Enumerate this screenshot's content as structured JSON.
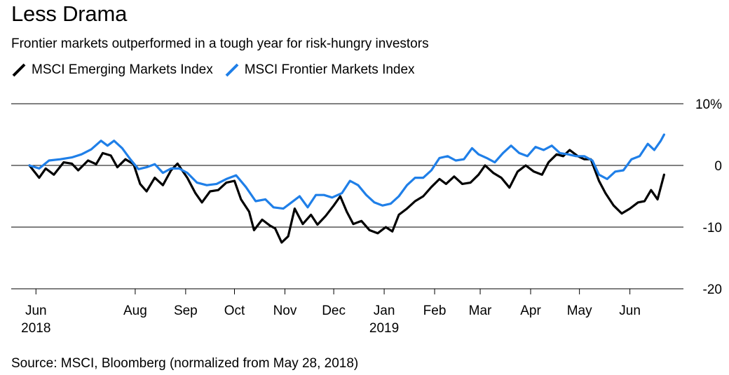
{
  "title": "Less Drama",
  "subtitle": "Frontier markets outperformed in a tough year for risk-hungry investors",
  "source": "Source: MSCI, Bloomberg (normalized from May 28, 2018)",
  "colors": {
    "em": "#000000",
    "fm": "#1f7fe8"
  },
  "chart_data": {
    "type": "line",
    "title": "Less Drama",
    "subtitle": "Frontier markets outperformed in a tough year for risk-hungry investors",
    "xlabel": "",
    "ylabel": "",
    "ylim": [
      -20,
      10
    ],
    "yticks": [
      10,
      0,
      -10,
      -20
    ],
    "ytick_labels": [
      "10%",
      "0",
      "-10",
      "-20"
    ],
    "grid": true,
    "legend": "top-left",
    "x_start": "2018-05-28",
    "x_end": "2019-06-24",
    "x_ticks": [
      {
        "date": "2018-06-01",
        "label": "Jun",
        "year": "2018"
      },
      {
        "date": "2018-08-01",
        "label": "Aug",
        "year": ""
      },
      {
        "date": "2018-09-01",
        "label": "Sep",
        "year": ""
      },
      {
        "date": "2018-10-01",
        "label": "Oct",
        "year": ""
      },
      {
        "date": "2018-11-01",
        "label": "Nov",
        "year": ""
      },
      {
        "date": "2018-12-01",
        "label": "Dec",
        "year": ""
      },
      {
        "date": "2019-01-01",
        "label": "Jan",
        "year": "2019"
      },
      {
        "date": "2019-02-01",
        "label": "Feb",
        "year": ""
      },
      {
        "date": "2019-03-01",
        "label": "Mar",
        "year": ""
      },
      {
        "date": "2019-04-01",
        "label": "Apr",
        "year": ""
      },
      {
        "date": "2019-05-01",
        "label": "May",
        "year": ""
      },
      {
        "date": "2019-06-01",
        "label": "Jun",
        "year": ""
      }
    ],
    "series": [
      {
        "name": "MSCI Emerging Markets Index",
        "color": "#000000",
        "points": [
          [
            "2018-05-28",
            0
          ],
          [
            "2018-06-03",
            -2
          ],
          [
            "2018-06-07",
            -0.5
          ],
          [
            "2018-06-12",
            -1.5
          ],
          [
            "2018-06-18",
            0.5
          ],
          [
            "2018-06-23",
            0.3
          ],
          [
            "2018-06-27",
            -0.8
          ],
          [
            "2018-07-03",
            0.8
          ],
          [
            "2018-07-08",
            0.2
          ],
          [
            "2018-07-12",
            2.0
          ],
          [
            "2018-07-17",
            1.6
          ],
          [
            "2018-07-21",
            -0.3
          ],
          [
            "2018-07-26",
            1.0
          ],
          [
            "2018-07-31",
            0.2
          ],
          [
            "2018-08-04",
            -3.0
          ],
          [
            "2018-08-08",
            -4.2
          ],
          [
            "2018-08-13",
            -2.0
          ],
          [
            "2018-08-18",
            -3.2
          ],
          [
            "2018-08-23",
            -0.8
          ],
          [
            "2018-08-27",
            0.3
          ],
          [
            "2018-09-02",
            -2.0
          ],
          [
            "2018-09-07",
            -4.5
          ],
          [
            "2018-09-11",
            -6.0
          ],
          [
            "2018-09-16",
            -4.2
          ],
          [
            "2018-09-21",
            -4.0
          ],
          [
            "2018-09-26",
            -2.8
          ],
          [
            "2018-10-01",
            -2.5
          ],
          [
            "2018-10-05",
            -5.5
          ],
          [
            "2018-10-10",
            -7.5
          ],
          [
            "2018-10-13",
            -10.5
          ],
          [
            "2018-10-18",
            -8.8
          ],
          [
            "2018-10-23",
            -9.8
          ],
          [
            "2018-10-26",
            -10.2
          ],
          [
            "2018-10-30",
            -12.5
          ],
          [
            "2018-11-03",
            -11.5
          ],
          [
            "2018-11-07",
            -7.0
          ],
          [
            "2018-11-12",
            -9.5
          ],
          [
            "2018-11-17",
            -8.0
          ],
          [
            "2018-11-21",
            -9.6
          ],
          [
            "2018-11-26",
            -8.2
          ],
          [
            "2018-12-01",
            -6.5
          ],
          [
            "2018-12-05",
            -5.0
          ],
          [
            "2018-12-09",
            -7.5
          ],
          [
            "2018-12-13",
            -9.5
          ],
          [
            "2018-12-18",
            -9.0
          ],
          [
            "2018-12-23",
            -10.5
          ],
          [
            "2018-12-28",
            -11.0
          ],
          [
            "2019-01-02",
            -10.0
          ],
          [
            "2019-01-06",
            -10.7
          ],
          [
            "2019-01-10",
            -8.0
          ],
          [
            "2019-01-15",
            -7.0
          ],
          [
            "2019-01-20",
            -5.8
          ],
          [
            "2019-01-25",
            -5.0
          ],
          [
            "2019-01-30",
            -3.5
          ],
          [
            "2019-02-04",
            -2.2
          ],
          [
            "2019-02-08",
            -3.0
          ],
          [
            "2019-02-13",
            -1.8
          ],
          [
            "2019-02-18",
            -3.0
          ],
          [
            "2019-02-23",
            -2.8
          ],
          [
            "2019-02-28",
            -1.5
          ],
          [
            "2019-03-04",
            0
          ],
          [
            "2019-03-09",
            -1.2
          ],
          [
            "2019-03-14",
            -2.0
          ],
          [
            "2019-03-19",
            -3.6
          ],
          [
            "2019-03-24",
            -1.0
          ],
          [
            "2019-03-29",
            0
          ],
          [
            "2019-04-03",
            -1.0
          ],
          [
            "2019-04-08",
            -1.5
          ],
          [
            "2019-04-12",
            0.5
          ],
          [
            "2019-04-17",
            1.8
          ],
          [
            "2019-04-21",
            1.5
          ],
          [
            "2019-04-25",
            2.5
          ],
          [
            "2019-04-30",
            1.5
          ],
          [
            "2019-05-04",
            1.0
          ],
          [
            "2019-05-08",
            1.0
          ],
          [
            "2019-05-13",
            -2.5
          ],
          [
            "2019-05-17",
            -4.5
          ],
          [
            "2019-05-22",
            -6.5
          ],
          [
            "2019-05-27",
            -7.8
          ],
          [
            "2019-06-01",
            -7.0
          ],
          [
            "2019-06-06",
            -6.0
          ],
          [
            "2019-06-10",
            -5.8
          ],
          [
            "2019-06-14",
            -4.0
          ],
          [
            "2019-06-18",
            -5.5
          ],
          [
            "2019-06-22",
            -1.5
          ]
        ]
      },
      {
        "name": "MSCI Frontier Markets Index",
        "color": "#1f7fe8",
        "points": [
          [
            "2018-05-28",
            0
          ],
          [
            "2018-06-03",
            -0.5
          ],
          [
            "2018-06-09",
            0.8
          ],
          [
            "2018-06-16",
            1.0
          ],
          [
            "2018-06-23",
            1.3
          ],
          [
            "2018-06-29",
            1.8
          ],
          [
            "2018-07-05",
            2.6
          ],
          [
            "2018-07-11",
            4.0
          ],
          [
            "2018-07-15",
            3.2
          ],
          [
            "2018-07-19",
            4.0
          ],
          [
            "2018-07-24",
            2.8
          ],
          [
            "2018-07-29",
            1.0
          ],
          [
            "2018-08-03",
            -0.6
          ],
          [
            "2018-08-08",
            -0.3
          ],
          [
            "2018-08-13",
            0.2
          ],
          [
            "2018-08-18",
            -1.2
          ],
          [
            "2018-08-23",
            -0.5
          ],
          [
            "2018-08-28",
            -0.5
          ],
          [
            "2018-09-02",
            -1.2
          ],
          [
            "2018-09-08",
            -2.8
          ],
          [
            "2018-09-14",
            -3.2
          ],
          [
            "2018-09-20",
            -3.0
          ],
          [
            "2018-09-26",
            -2.2
          ],
          [
            "2018-10-02",
            -1.6
          ],
          [
            "2018-10-08",
            -3.5
          ],
          [
            "2018-10-14",
            -5.8
          ],
          [
            "2018-10-20",
            -5.5
          ],
          [
            "2018-10-25",
            -6.8
          ],
          [
            "2018-10-31",
            -7.0
          ],
          [
            "2018-11-05",
            -6.0
          ],
          [
            "2018-11-10",
            -5.0
          ],
          [
            "2018-11-15",
            -6.8
          ],
          [
            "2018-11-20",
            -4.8
          ],
          [
            "2018-11-25",
            -4.8
          ],
          [
            "2018-11-30",
            -5.2
          ],
          [
            "2018-12-06",
            -4.5
          ],
          [
            "2018-12-11",
            -2.5
          ],
          [
            "2018-12-16",
            -3.2
          ],
          [
            "2018-12-21",
            -4.8
          ],
          [
            "2018-12-26",
            -6.0
          ],
          [
            "2018-12-31",
            -6.5
          ],
          [
            "2019-01-05",
            -6.2
          ],
          [
            "2019-01-10",
            -5.0
          ],
          [
            "2019-01-15",
            -3.2
          ],
          [
            "2019-01-20",
            -2.0
          ],
          [
            "2019-01-25",
            -2.0
          ],
          [
            "2019-01-30",
            -0.8
          ],
          [
            "2019-02-04",
            1.2
          ],
          [
            "2019-02-09",
            1.5
          ],
          [
            "2019-02-14",
            0.8
          ],
          [
            "2019-02-19",
            1.0
          ],
          [
            "2019-02-24",
            2.8
          ],
          [
            "2019-02-28",
            1.8
          ],
          [
            "2019-03-05",
            1.2
          ],
          [
            "2019-03-10",
            0.5
          ],
          [
            "2019-03-15",
            2.0
          ],
          [
            "2019-03-20",
            3.2
          ],
          [
            "2019-03-25",
            2.0
          ],
          [
            "2019-03-30",
            1.5
          ],
          [
            "2019-04-04",
            3.0
          ],
          [
            "2019-04-09",
            2.5
          ],
          [
            "2019-04-14",
            3.2
          ],
          [
            "2019-04-19",
            2.0
          ],
          [
            "2019-04-24",
            1.8
          ],
          [
            "2019-04-29",
            1.5
          ],
          [
            "2019-05-04",
            1.5
          ],
          [
            "2019-05-09",
            0.8
          ],
          [
            "2019-05-13",
            -1.5
          ],
          [
            "2019-05-18",
            -2.2
          ],
          [
            "2019-05-23",
            -1.0
          ],
          [
            "2019-05-28",
            -0.8
          ],
          [
            "2019-06-02",
            1.0
          ],
          [
            "2019-06-07",
            1.5
          ],
          [
            "2019-06-12",
            3.5
          ],
          [
            "2019-06-16",
            2.5
          ],
          [
            "2019-06-20",
            4.0
          ],
          [
            "2019-06-22",
            5.0
          ]
        ]
      }
    ]
  }
}
